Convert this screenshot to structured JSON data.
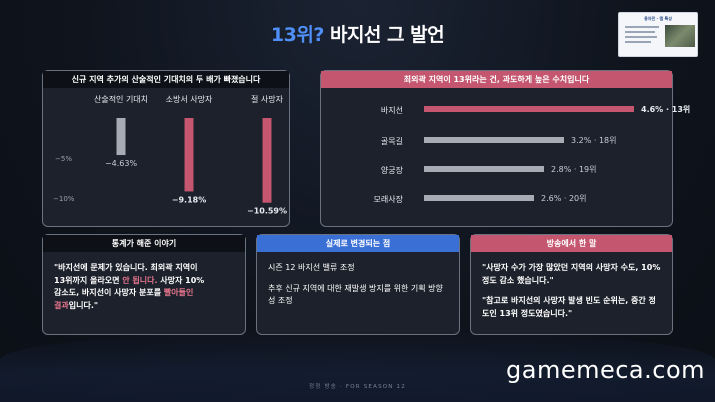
{
  "title": {
    "accent": "13위?",
    "rest": " 바지선 그 발언"
  },
  "preview": {
    "title": "용자전 · 맵 특성"
  },
  "panel1": {
    "header": "신규 지역 추가의 산술적인 기대치의 두 배가 빠졌습니다"
  },
  "panel2": {
    "header": "최외곽 지역이 13위라는 건, 과도하게 높은 수치입니다"
  },
  "panel3": {
    "header": "통계가 해준 이야기",
    "line1": "\"바지선에 문제가 있습니다. 최외곽 지역이",
    "line2a": "13위까지 올라오면 ",
    "line2hl": "안 됩니다.",
    "line2b": " 사망자 10%",
    "line3a": "감소도, 바지선이 사망자 분포를 ",
    "line3hl": "빨아들인",
    "line4hl": "결과",
    "line4b": "입니다.\""
  },
  "panel4": {
    "header": "실제로 변경되는 점",
    "p1": "시즌 12 바지선 밸류 조정",
    "p2": "추후 신규 지역에 대한 재발생 방지를 위한 기획 방향성 조정"
  },
  "panel5": {
    "header": "방송에서 한 말",
    "p1": "\"사망자 수가 가장 많았던 지역의 사망자 수도, 10% 정도 감소 했습니다.\"",
    "p2": "\"참고로 바지선의 사망자 발생 빈도 순위는, 중간 정도인 13위 정도였습니다.\""
  },
  "watermark": "gamemeca.com",
  "footer": "정정 방송 · FOR SEASON 12",
  "colors": {
    "pink": "#c4576f",
    "gray": "#a7acb4",
    "blue": "#3a6fd6"
  },
  "chart_data": [
    {
      "type": "bar",
      "categories": [
        "산술적인 기대치",
        "소방서 사망자",
        "절 사망자"
      ],
      "values": [
        -4.63,
        -9.18,
        -10.59
      ],
      "value_labels": [
        "−4.63%",
        "−9.18%",
        "−10.59%"
      ],
      "y_ticks": [
        "−5%",
        "−10%"
      ],
      "ylim": [
        -12,
        0
      ],
      "colors": [
        "#a7acb4",
        "#c4576f",
        "#c4576f"
      ]
    },
    {
      "type": "bar",
      "orientation": "horizontal",
      "categories": [
        "바지선",
        "골목길",
        "양궁장",
        "모래사장"
      ],
      "values": [
        4.6,
        3.2,
        2.8,
        2.6
      ],
      "value_labels": [
        "4.6% · 13위",
        "3.2% · 18위",
        "2.8% · 19위",
        "2.6% · 20위"
      ],
      "xlim": [
        0,
        5
      ],
      "colors": [
        "#c4576f",
        "#a7acb4",
        "#a7acb4",
        "#a7acb4"
      ]
    }
  ]
}
